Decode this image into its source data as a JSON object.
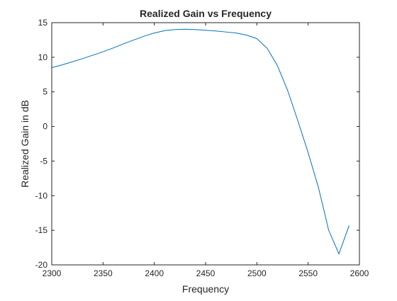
{
  "chart_data": {
    "type": "line",
    "title": "Realized Gain vs Frequency",
    "xlabel": "Frequency",
    "ylabel": "Realized Gain in dB",
    "xlim": [
      2300,
      2600
    ],
    "ylim": [
      -20,
      15
    ],
    "xticks": [
      2300,
      2350,
      2400,
      2450,
      2500,
      2550,
      2600
    ],
    "yticks": [
      -20,
      -15,
      -10,
      -5,
      0,
      5,
      10,
      15
    ],
    "grid": false,
    "legend": "none",
    "colors": {
      "line": "#0072BD",
      "axes": "#262626",
      "background": "#ffffff"
    },
    "series": [
      {
        "x": [
          2300,
          2310,
          2320,
          2330,
          2340,
          2350,
          2360,
          2370,
          2380,
          2390,
          2400,
          2410,
          2420,
          2430,
          2440,
          2450,
          2460,
          2470,
          2480,
          2490,
          2500,
          2510,
          2520,
          2530,
          2540,
          2550,
          2560,
          2570,
          2580,
          2590
        ],
        "y": [
          8.5,
          8.9,
          9.35,
          9.8,
          10.3,
          10.8,
          11.35,
          11.95,
          12.5,
          13.05,
          13.5,
          13.85,
          14.0,
          14.05,
          14.0,
          13.9,
          13.8,
          13.65,
          13.5,
          13.2,
          12.7,
          11.3,
          8.8,
          5.2,
          0.8,
          -3.8,
          -8.8,
          -15.0,
          -18.4,
          -14.3
        ]
      }
    ]
  }
}
